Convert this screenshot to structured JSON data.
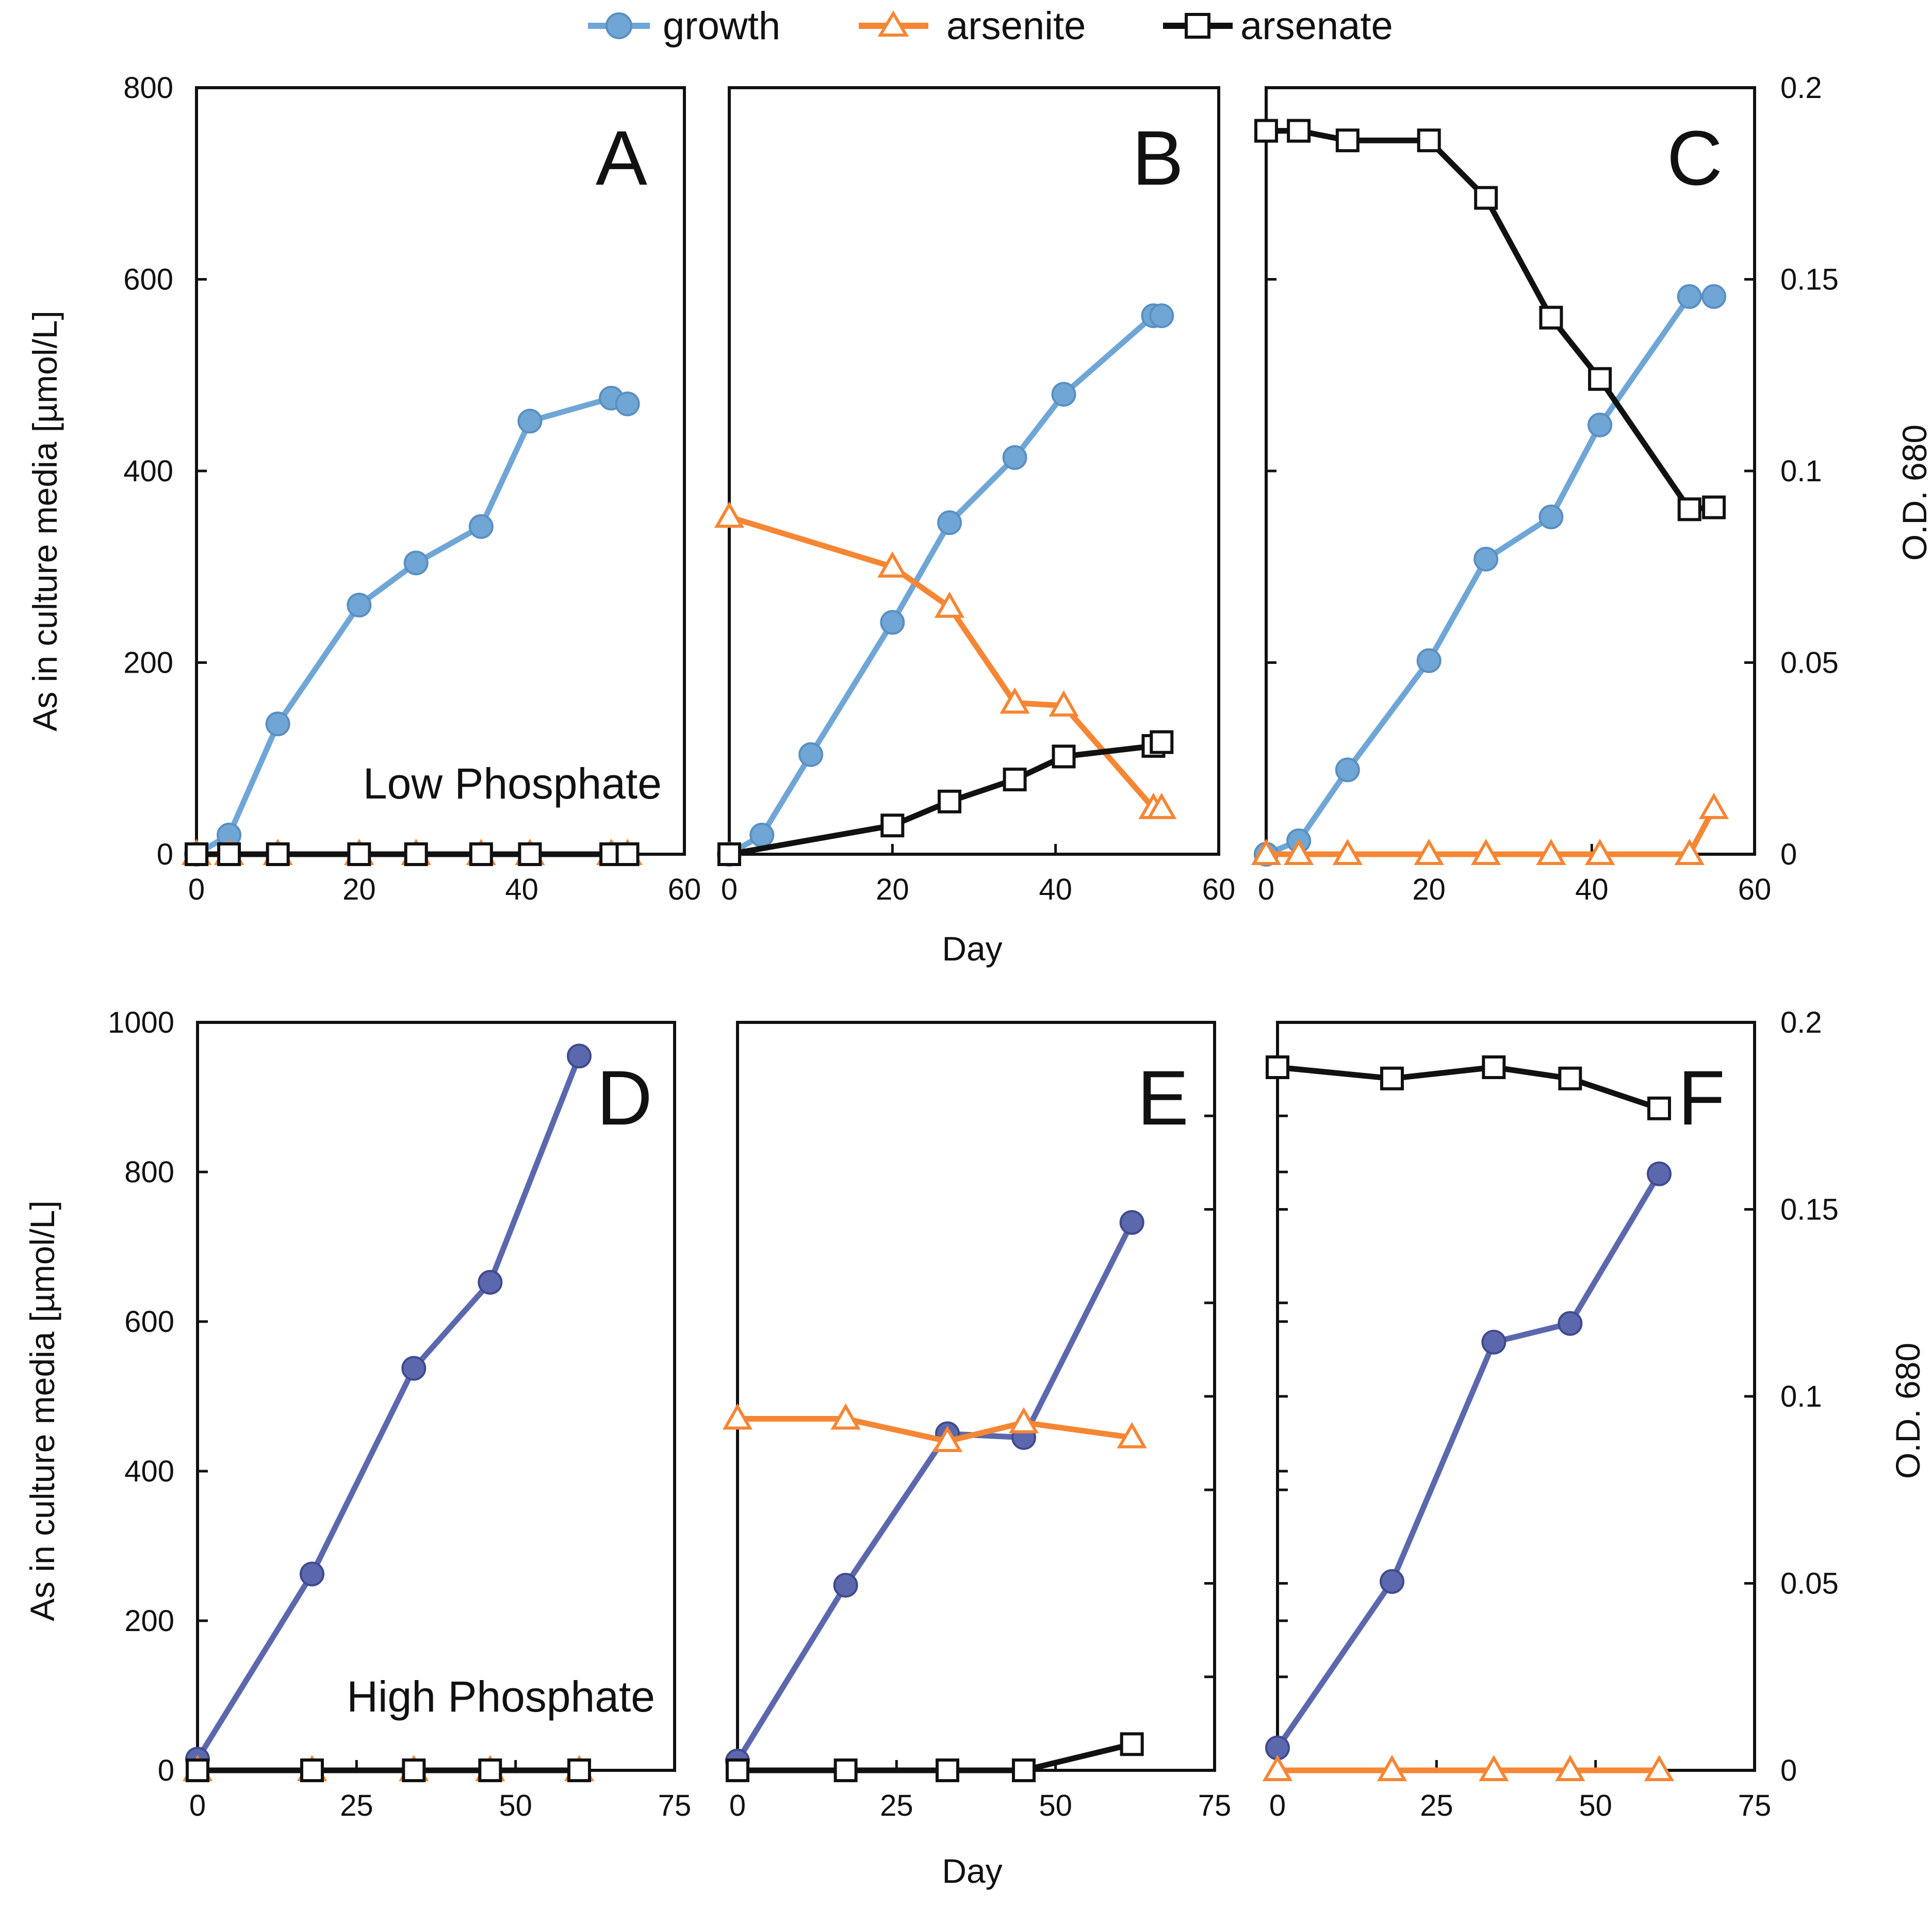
{
  "legend": {
    "growth": "growth",
    "arsenite": "arsenite",
    "arsenate": "arsenate"
  },
  "colors": {
    "growth_low": "#6fa6d6",
    "growth_low_edge": "#5a8fc0",
    "growth_high": "#5b68ad",
    "growth_high_edge": "#3f4a8c",
    "arsenite": "#f58634",
    "arsenate": "#111111"
  },
  "labels": {
    "ylabel_left": "As in culture media [µmol/L]",
    "ylabel_right": "O.D. 680",
    "xlabel": "Day",
    "note_low": "Low Phosphate",
    "note_high": "High Phosphate"
  },
  "chart_data": [
    {
      "panel": "A",
      "type": "line",
      "row": "top",
      "letter": "A",
      "xlim": [
        0,
        60
      ],
      "xticks": [
        "0",
        "20",
        "40",
        "60"
      ],
      "ylim_left": [
        0,
        800
      ],
      "yticks_left": [
        "0",
        "200",
        "400",
        "600",
        "800"
      ],
      "ylim_right": [
        0,
        0.2
      ],
      "yticks_right": [],
      "show_left_ticks": true,
      "show_right_ticks": false,
      "series": [
        {
          "name": "growth",
          "axis": "right",
          "marker": "circle",
          "x": [
            0,
            4,
            10,
            20,
            27,
            35,
            41,
            51,
            53
          ],
          "y": [
            0,
            0.005,
            0.034,
            0.065,
            0.076,
            0.0855,
            0.113,
            0.119,
            0.1175
          ]
        },
        {
          "name": "arsenite",
          "axis": "left",
          "marker": "triangle",
          "x": [
            0,
            4,
            10,
            20,
            27,
            35,
            41,
            51,
            53
          ],
          "y": [
            0,
            0,
            0,
            0,
            0,
            0,
            0,
            0,
            0
          ]
        },
        {
          "name": "arsenate",
          "axis": "left",
          "marker": "square",
          "x": [
            0,
            4,
            10,
            20,
            27,
            35,
            41,
            51,
            53
          ],
          "y": [
            0,
            0,
            0,
            0,
            0,
            0,
            0,
            0,
            0
          ]
        }
      ]
    },
    {
      "panel": "B",
      "type": "line",
      "row": "top",
      "letter": "B",
      "xlim": [
        0,
        60
      ],
      "xticks": [
        "0",
        "20",
        "40",
        "60"
      ],
      "ylim_left": [
        0,
        800
      ],
      "yticks_left": [],
      "ylim_right": [
        0,
        0.2
      ],
      "yticks_right": [],
      "show_left_ticks": false,
      "show_right_ticks": false,
      "series": [
        {
          "name": "growth",
          "axis": "right",
          "marker": "circle",
          "x": [
            0,
            4,
            10,
            20,
            27,
            35,
            41,
            52,
            53
          ],
          "y": [
            0,
            0.005,
            0.026,
            0.0605,
            0.0865,
            0.1035,
            0.12,
            0.1405,
            0.1405
          ]
        },
        {
          "name": "arsenite",
          "axis": "left",
          "marker": "triangle",
          "x": [
            0,
            20,
            27,
            35,
            41,
            52,
            53
          ],
          "y": [
            352,
            300,
            258,
            158,
            155,
            48,
            48
          ]
        },
        {
          "name": "arsenate",
          "axis": "left",
          "marker": "square",
          "x": [
            0,
            20,
            27,
            35,
            41,
            52,
            53
          ],
          "y": [
            0,
            30,
            55,
            78,
            102,
            113,
            117
          ]
        }
      ]
    },
    {
      "panel": "C",
      "type": "line",
      "row": "top",
      "letter": "C",
      "xlim": [
        0,
        60
      ],
      "xticks": [
        "0",
        "20",
        "40",
        "60"
      ],
      "ylim_left": [
        0,
        800
      ],
      "yticks_left": [],
      "ylim_right": [
        0,
        0.2
      ],
      "yticks_right": [
        "0",
        "0.05",
        "0.1",
        "0.15",
        "0.2"
      ],
      "show_left_ticks": true,
      "show_right_ticks": true,
      "series": [
        {
          "name": "growth",
          "axis": "right",
          "marker": "circle",
          "x": [
            0,
            4,
            10,
            20,
            27,
            35,
            41,
            52,
            55
          ],
          "y": [
            0,
            0.0035,
            0.022,
            0.0505,
            0.077,
            0.088,
            0.112,
            0.1455,
            0.1455
          ]
        },
        {
          "name": "arsenite",
          "axis": "left",
          "marker": "triangle",
          "x": [
            0,
            4,
            10,
            20,
            27,
            35,
            41,
            52,
            55
          ],
          "y": [
            0,
            0,
            0,
            0,
            0,
            0,
            0,
            0,
            48
          ]
        },
        {
          "name": "arsenate",
          "axis": "left",
          "marker": "square",
          "x": [
            0,
            4,
            10,
            20,
            27,
            35,
            41,
            52,
            55
          ],
          "y": [
            755,
            755,
            745,
            745,
            685,
            560,
            496,
            360,
            362
          ]
        }
      ]
    },
    {
      "panel": "D",
      "type": "line",
      "row": "bottom",
      "letter": "D",
      "xlim": [
        0,
        75
      ],
      "xticks": [
        "0",
        "25",
        "50",
        "75"
      ],
      "ylim_left": [
        0,
        1000
      ],
      "yticks_left": [
        "0",
        "200",
        "400",
        "600",
        "800",
        "1000"
      ],
      "ylim_right": [
        0,
        0.2
      ],
      "yticks_right": [],
      "show_left_ticks": true,
      "show_right_ticks": false,
      "series": [
        {
          "name": "growth",
          "axis": "right",
          "marker": "circle",
          "x": [
            0,
            18,
            34,
            46,
            60
          ],
          "y": [
            0.003,
            0.0525,
            0.1075,
            0.1305,
            0.191
          ]
        },
        {
          "name": "arsenite",
          "axis": "left",
          "marker": "triangle",
          "x": [
            0,
            18,
            34,
            46,
            60
          ],
          "y": [
            0,
            0,
            0,
            0,
            0
          ]
        },
        {
          "name": "arsenate",
          "axis": "left",
          "marker": "square",
          "x": [
            0,
            18,
            34,
            46,
            60
          ],
          "y": [
            0,
            0,
            0,
            0,
            0
          ]
        }
      ]
    },
    {
      "panel": "E",
      "type": "line",
      "row": "bottom",
      "letter": "E",
      "xlim": [
        0,
        75
      ],
      "xticks": [
        "0",
        "25",
        "50",
        "75"
      ],
      "ylim_left": [
        0,
        1000
      ],
      "yticks_left": [],
      "ylim_right": [
        0,
        0.2
      ],
      "yticks_right": [],
      "show_left_ticks": false,
      "show_right_ticks": true,
      "series": [
        {
          "name": "growth",
          "axis": "right",
          "marker": "circle",
          "x": [
            0,
            17,
            33,
            45,
            62
          ],
          "y": [
            0.0025,
            0.0495,
            0.09,
            0.089,
            0.1465
          ]
        },
        {
          "name": "arsenite",
          "axis": "left",
          "marker": "triangle",
          "x": [
            0,
            17,
            33,
            45,
            62
          ],
          "y": [
            470,
            470,
            440,
            465,
            445
          ]
        },
        {
          "name": "arsenate",
          "axis": "left",
          "marker": "square",
          "x": [
            0,
            17,
            33,
            45,
            62
          ],
          "y": [
            0,
            0,
            0,
            0,
            35
          ]
        }
      ]
    },
    {
      "panel": "F",
      "type": "line",
      "row": "bottom",
      "letter": "F",
      "xlim": [
        0,
        75
      ],
      "xticks": [
        "0",
        "25",
        "50",
        "75"
      ],
      "ylim_left": [
        0,
        1000
      ],
      "yticks_left": [],
      "ylim_right": [
        0,
        0.2
      ],
      "yticks_right": [
        "0",
        "0.05",
        "0.1",
        "0.15",
        "0.2"
      ],
      "show_left_ticks": true,
      "show_right_ticks": true,
      "series": [
        {
          "name": "growth",
          "axis": "right",
          "marker": "circle",
          "x": [
            0,
            18,
            34,
            46,
            60
          ],
          "y": [
            0.006,
            0.0505,
            0.1145,
            0.1195,
            0.1595
          ]
        },
        {
          "name": "arsenite",
          "axis": "left",
          "marker": "triangle",
          "x": [
            0,
            18,
            34,
            46,
            60
          ],
          "y": [
            0,
            0,
            0,
            0,
            0
          ]
        },
        {
          "name": "arsenate",
          "axis": "left",
          "marker": "square",
          "x": [
            0,
            18,
            34,
            46,
            60
          ],
          "y": [
            940,
            925,
            940,
            925,
            885
          ]
        }
      ]
    }
  ]
}
